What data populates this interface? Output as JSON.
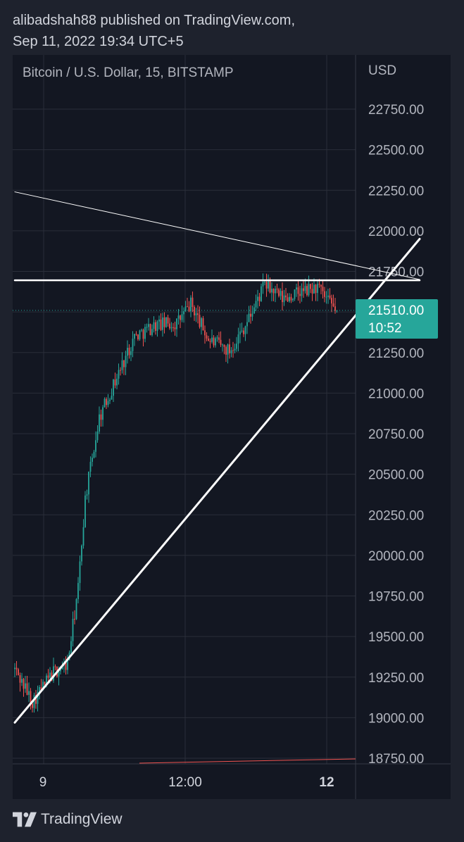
{
  "header": {
    "line1": "alibadshah88 published on TradingView.com,",
    "line2": "Sep 11, 2022 19:34 UTC+5"
  },
  "symbol_title": "Bitcoin / U.S. Dollar, 15, BITSTAMP",
  "currency": "USD",
  "price_tag": {
    "price": "21510.00",
    "countdown": "10:52",
    "color": "#26a69a"
  },
  "footer": {
    "brand": "TradingView",
    "logo_icon": "tradingview-logo-icon"
  },
  "colors": {
    "background": "#131722",
    "up": "#26a69a",
    "down": "#ef5350",
    "drawing": "#ffffff",
    "grid": "#2a2e39"
  },
  "chart_data": {
    "type": "candlestick",
    "y_axis": {
      "ticks": [
        22750,
        22500,
        22250,
        22000,
        21750,
        21500,
        21250,
        21000,
        20750,
        20500,
        20250,
        20000,
        19750,
        19500,
        19250,
        19000,
        18750
      ],
      "tick_labels": [
        "22750.00",
        "22500.00",
        "22250.00",
        "22000.00",
        "21750.00",
        "",
        "21250.00",
        "21000.00",
        "20750.00",
        "20500.00",
        "20250.00",
        "20000.00",
        "19750.00",
        "19500.00",
        "19250.00",
        "19000.00",
        "18750.00"
      ],
      "range": [
        18720,
        22950
      ]
    },
    "x_axis": {
      "tick_labels": [
        "9",
        "12:00",
        "12"
      ],
      "tick_bold": [
        false,
        false,
        true
      ]
    },
    "last_price": 21510,
    "anchors": [
      {
        "t": 0,
        "p": 19300
      },
      {
        "t": 10,
        "p": 19100
      },
      {
        "t": 22,
        "p": 19280
      },
      {
        "t": 30,
        "p": 19330
      },
      {
        "t": 36,
        "p": 19800
      },
      {
        "t": 40,
        "p": 20350
      },
      {
        "t": 48,
        "p": 20850
      },
      {
        "t": 58,
        "p": 21100
      },
      {
        "t": 68,
        "p": 21350
      },
      {
        "t": 80,
        "p": 21420
      },
      {
        "t": 92,
        "p": 21430
      },
      {
        "t": 100,
        "p": 21550
      },
      {
        "t": 110,
        "p": 21330
      },
      {
        "t": 122,
        "p": 21260
      },
      {
        "t": 132,
        "p": 21440
      },
      {
        "t": 142,
        "p": 21670
      },
      {
        "t": 152,
        "p": 21580
      },
      {
        "t": 162,
        "p": 21620
      },
      {
        "t": 172,
        "p": 21650
      },
      {
        "t": 178,
        "p": 21560
      },
      {
        "t": 183,
        "p": 21510
      }
    ],
    "drawings": [
      {
        "name": "horizontal-resistance",
        "t1": 0,
        "p1": 21695,
        "t2": 230,
        "p2": 21695,
        "width": 2.5
      },
      {
        "name": "ascending-trendline",
        "t1": 0,
        "p1": 18970,
        "t2": 230,
        "p2": 21950,
        "width": 3
      },
      {
        "name": "descending-trendline",
        "t1": 0,
        "p1": 22240,
        "t2": 230,
        "p2": 21700,
        "width": 1
      }
    ]
  }
}
